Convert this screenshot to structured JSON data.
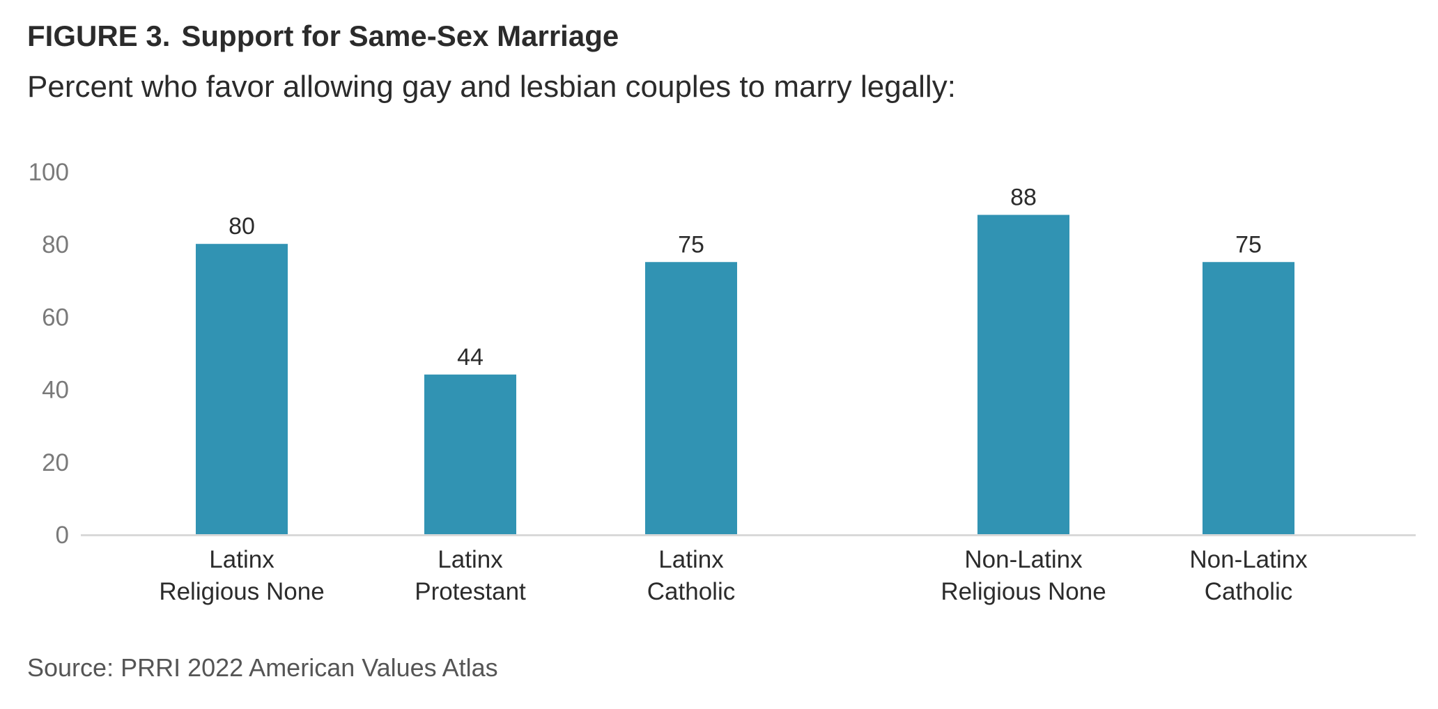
{
  "header": {
    "figure_label": "FIGURE 3.",
    "title": "Support for Same-Sex Marriage",
    "subtitle": "Percent who favor allowing gay and lesbian couples to marry legally:"
  },
  "footer": {
    "source": "Source: PRRI 2022 American Values Atlas"
  },
  "colors": {
    "bar": "#3193b3",
    "axis_text": "#7a7a7a",
    "label_text": "#2b2b2b",
    "baseline": "#d9d9d9"
  },
  "chart_data": {
    "type": "bar",
    "categories": [
      [
        "Latinx",
        "Religious None"
      ],
      [
        "Latinx",
        "Protestant"
      ],
      [
        "Latinx",
        "Catholic"
      ],
      [
        "Non-Latinx",
        "Religious None"
      ],
      [
        "Non-Latinx",
        "Catholic"
      ]
    ],
    "values": [
      80,
      44,
      75,
      88,
      75
    ],
    "data_labels": [
      "80",
      "44",
      "75",
      "88",
      "75"
    ],
    "title": "Support for Same-Sex Marriage",
    "subtitle": "Percent who favor allowing gay and lesbian couples to marry legally:",
    "xlabel": "",
    "ylabel": "",
    "ylim": [
      0,
      100
    ],
    "yticks": [
      "0",
      "20",
      "40",
      "60",
      "80",
      "100"
    ],
    "grid": false,
    "legend": "none"
  }
}
